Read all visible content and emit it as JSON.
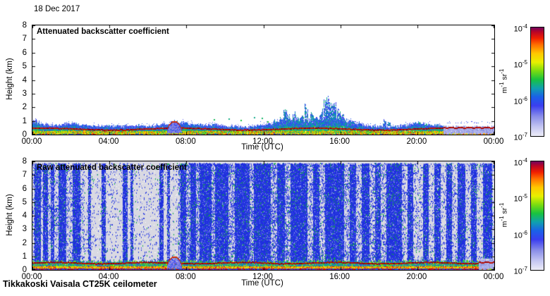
{
  "header": {
    "date": "18 Dec 2017"
  },
  "footer": {
    "instrument": "Tikkakoski Vaisala CT25K ceilometer"
  },
  "chart_data": {
    "type": "heatmap",
    "x_tick_hours": [
      0,
      4,
      8,
      12,
      16,
      20,
      24
    ],
    "x_tick_labels": [
      "00:00",
      "04:00",
      "08:00",
      "12:00",
      "16:00",
      "20:00",
      "00:00"
    ],
    "y_ticks": [
      0,
      1,
      2,
      3,
      4,
      5,
      6,
      7,
      8
    ],
    "xlim_hours": [
      0,
      24
    ],
    "ylim_km": [
      0,
      8
    ],
    "value_range_m1sr1": [
      "1e-7",
      "1e-4"
    ],
    "seed": 1337,
    "colormap": [
      [
        "0.00",
        "#ededf8"
      ],
      [
        "0.08",
        "#c6c8f2"
      ],
      [
        "0.18",
        "#8a8ee8"
      ],
      [
        "0.28",
        "#3a3ef0"
      ],
      [
        "0.36",
        "#1b60e8"
      ],
      [
        "0.44",
        "#10a0b0"
      ],
      [
        "0.52",
        "#18c240"
      ],
      [
        "0.60",
        "#7adc10"
      ],
      [
        "0.68",
        "#e8f000"
      ],
      [
        "0.76",
        "#ffc800"
      ],
      [
        "0.84",
        "#ff7000"
      ],
      [
        "0.90",
        "#f02000"
      ],
      [
        "0.96",
        "#b80428"
      ],
      [
        "1.00",
        "#70045e"
      ]
    ],
    "colorbar": {
      "tick_labels": [
        {
          "base": "10",
          "exp": "-4"
        },
        {
          "base": "10",
          "exp": "-5"
        },
        {
          "base": "10",
          "exp": "-6"
        },
        {
          "base": "10",
          "exp": "-7"
        }
      ],
      "unit": {
        "m": "m",
        "m_exp": "-1",
        "sr": " sr",
        "sr_exp": "-1"
      }
    },
    "panels": [
      {
        "id": "attenuated",
        "title": "Attenuated backscatter coefficient",
        "xlabel": "Time (UTC)",
        "ylabel": "Height (km)",
        "background": "#ffffff",
        "layer_top_km": {
          "hours": [
            0,
            0.5,
            1,
            1.5,
            2,
            2.5,
            3,
            3.5,
            4,
            4.5,
            5,
            5.5,
            6,
            6.5,
            7,
            7.5,
            8,
            8.5,
            9,
            9.5,
            10,
            10.5,
            11,
            11.5,
            12,
            12.5,
            13,
            13.5,
            14,
            14.5,
            15,
            15.5,
            16,
            16.5,
            17,
            17.5,
            18,
            18.5,
            19,
            19.5,
            20,
            20.5,
            21,
            21.5,
            22,
            22.5,
            23,
            23.5,
            24
          ],
          "values": [
            1.0,
            0.8,
            0.65,
            0.7,
            0.85,
            0.7,
            0.6,
            0.6,
            0.65,
            0.6,
            0.6,
            0.65,
            0.6,
            0.65,
            0.8,
            0.95,
            0.8,
            0.7,
            0.65,
            0.7,
            0.6,
            0.6,
            0.55,
            0.6,
            0.7,
            0.85,
            1.0,
            1.1,
            1.0,
            1.0,
            1.1,
            1.2,
            1.1,
            0.9,
            0.8,
            0.6,
            0.6,
            0.55,
            0.6,
            0.7,
            0.8,
            0.7,
            0.65,
            0.7,
            0.75,
            0.75,
            0.75,
            0.7,
            0.75
          ]
        },
        "cloud_spikes": [
          {
            "h": 12.6,
            "top": 1.1
          },
          {
            "h": 12.9,
            "top": 1.3
          },
          {
            "h": 13.1,
            "top": 2.0
          },
          {
            "h": 13.3,
            "top": 1.4
          },
          {
            "h": 13.6,
            "top": 1.6
          },
          {
            "h": 13.8,
            "top": 1.2
          },
          {
            "h": 14.0,
            "top": 1.5
          },
          {
            "h": 14.2,
            "top": 2.1
          },
          {
            "h": 14.5,
            "top": 1.7
          },
          {
            "h": 14.7,
            "top": 1.3
          },
          {
            "h": 15.0,
            "top": 1.8
          },
          {
            "h": 15.2,
            "top": 2.5
          },
          {
            "h": 15.35,
            "top": 2.6
          },
          {
            "h": 15.5,
            "top": 2.2
          },
          {
            "h": 15.7,
            "top": 2.4
          },
          {
            "h": 15.9,
            "top": 1.9
          },
          {
            "h": 16.1,
            "top": 1.5
          },
          {
            "h": 16.3,
            "top": 1.2
          },
          {
            "h": 16.6,
            "top": 1.0
          },
          {
            "h": 17.0,
            "top": 0.9
          },
          {
            "h": 18.3,
            "top": 1.1
          },
          {
            "h": 18.5,
            "top": 0.9
          },
          {
            "h": 20.1,
            "top": 1.0
          },
          {
            "h": 20.4,
            "top": 0.9
          }
        ],
        "elevated_dots": [
          {
            "h": 9.4,
            "y": 1.15
          },
          {
            "h": 10.2,
            "y": 1.2
          },
          {
            "h": 10.8,
            "y": 1.1
          },
          {
            "h": 11.5,
            "y": 1.3
          },
          {
            "h": 11.9,
            "y": 1.25
          },
          {
            "h": 12.2,
            "y": 1.0
          }
        ],
        "fog_dome": {
          "start": 6.95,
          "end": 7.75,
          "top": 0.95
        },
        "drizzle_patch": {
          "start": 21.35,
          "end": 24,
          "top": 0.62,
          "line": 0.5
        }
      },
      {
        "id": "raw",
        "title": "Raw attenuated backscatter coefficient",
        "xlabel": "Time (UTC)",
        "ylabel": "Height (km)",
        "background": "#d9d9e2",
        "speckle_regions": [
          {
            "start": 0,
            "end": 2.7,
            "density": 0.16
          },
          {
            "start": 2.7,
            "end": 7.6,
            "density": 0.05
          },
          {
            "start": 7.6,
            "end": 13.3,
            "density": 0.3
          },
          {
            "start": 13.3,
            "end": 19.4,
            "density": 0.22
          },
          {
            "start": 19.4,
            "end": 24,
            "density": 0.12
          }
        ],
        "noise_stripes": [
          [
            0.1,
            0.45,
            0.8
          ],
          [
            0.55,
            0.8,
            0.7
          ],
          [
            0.95,
            1.15,
            0.6
          ],
          [
            1.35,
            1.75,
            0.8
          ],
          [
            2.1,
            2.5,
            0.75
          ],
          [
            2.9,
            3.05,
            0.5
          ],
          [
            3.6,
            3.8,
            0.6
          ],
          [
            4.7,
            4.95,
            0.65
          ],
          [
            5.1,
            5.25,
            0.5
          ],
          [
            6.6,
            6.8,
            0.6
          ],
          [
            7.0,
            7.15,
            0.5
          ],
          [
            7.7,
            8.0,
            0.7
          ],
          [
            8.2,
            8.5,
            0.8
          ],
          [
            8.7,
            9.3,
            0.85
          ],
          [
            9.5,
            10.2,
            0.8
          ],
          [
            10.5,
            11.3,
            0.85
          ],
          [
            11.5,
            12.4,
            0.9
          ],
          [
            12.7,
            13.1,
            0.8
          ],
          [
            13.4,
            14.3,
            0.85
          ],
          [
            14.6,
            14.9,
            0.7
          ],
          [
            15.2,
            16.2,
            0.85
          ],
          [
            16.5,
            16.8,
            0.7
          ],
          [
            17.1,
            17.5,
            0.8
          ],
          [
            17.8,
            18.1,
            0.6
          ],
          [
            18.4,
            19.2,
            0.85
          ],
          [
            19.5,
            19.8,
            0.7
          ],
          [
            20.3,
            20.6,
            0.75
          ],
          [
            20.9,
            21.2,
            0.7
          ],
          [
            21.5,
            21.8,
            0.75
          ],
          [
            22.1,
            22.5,
            0.8
          ],
          [
            22.8,
            23.1,
            0.7
          ],
          [
            23.4,
            23.9,
            0.75
          ]
        ],
        "surface_band": {
          "top": 0.6,
          "line": 0.5
        },
        "green_spikes": [
          {
            "h": 14.6,
            "top": 1.1
          },
          {
            "h": 14.9,
            "top": 1.3
          },
          {
            "h": 15.05,
            "top": 1.6
          },
          {
            "h": 15.2,
            "top": 1.2
          },
          {
            "h": 15.4,
            "top": 1.5
          },
          {
            "h": 15.7,
            "top": 1.0
          }
        ],
        "fog_dome": {
          "start": 6.95,
          "end": 7.75,
          "top": 0.95
        },
        "drizzle_patch": {
          "start": 23.2,
          "end": 24,
          "top": 0.8,
          "line": 0.55
        }
      }
    ]
  }
}
